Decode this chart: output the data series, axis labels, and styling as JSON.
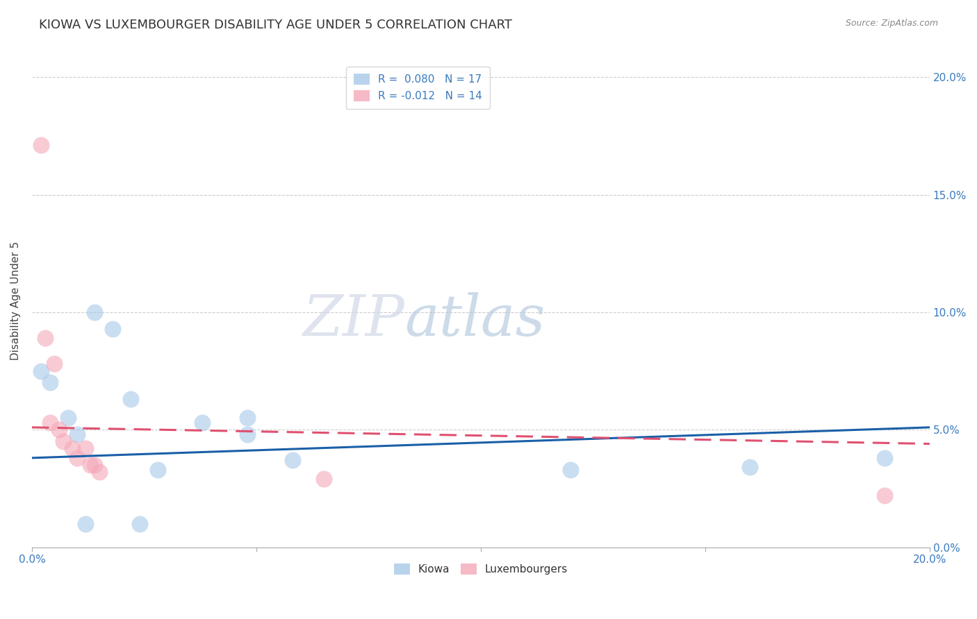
{
  "title": "KIOWA VS LUXEMBOURGER DISABILITY AGE UNDER 5 CORRELATION CHART",
  "source": "Source: ZipAtlas.com",
  "ylabel": "Disability Age Under 5",
  "legend_kiowa": {
    "R": "0.080",
    "N": 17
  },
  "legend_luxembourger": {
    "R": "-0.012",
    "N": 14
  },
  "kiowa_color": "#a8c8e8",
  "luxembourger_color": "#f4a8b8",
  "kiowa_line_color": "#1a5fa8",
  "luxembourger_line_color": "#e05070",
  "background_color": "#ffffff",
  "grid_color": "#cccccc",
  "kiowa_points": [
    [
      0.002,
      0.075
    ],
    [
      0.004,
      0.07
    ],
    [
      0.008,
      0.055
    ],
    [
      0.01,
      0.048
    ],
    [
      0.012,
      0.01
    ],
    [
      0.014,
      0.1
    ],
    [
      0.018,
      0.093
    ],
    [
      0.022,
      0.063
    ],
    [
      0.024,
      0.01
    ],
    [
      0.028,
      0.033
    ],
    [
      0.038,
      0.053
    ],
    [
      0.048,
      0.048
    ],
    [
      0.048,
      0.055
    ],
    [
      0.058,
      0.037
    ],
    [
      0.12,
      0.033
    ],
    [
      0.16,
      0.034
    ],
    [
      0.19,
      0.038
    ]
  ],
  "luxembourger_points": [
    [
      0.002,
      0.171
    ],
    [
      0.003,
      0.089
    ],
    [
      0.004,
      0.053
    ],
    [
      0.005,
      0.078
    ],
    [
      0.006,
      0.05
    ],
    [
      0.007,
      0.045
    ],
    [
      0.009,
      0.042
    ],
    [
      0.01,
      0.038
    ],
    [
      0.012,
      0.042
    ],
    [
      0.013,
      0.035
    ],
    [
      0.014,
      0.035
    ],
    [
      0.015,
      0.032
    ],
    [
      0.065,
      0.029
    ],
    [
      0.19,
      0.022
    ]
  ],
  "kiowa_trend": [
    0.038,
    0.051
  ],
  "luxembourger_trend": [
    0.051,
    0.044
  ],
  "xlim": [
    0.0,
    0.2
  ],
  "ylim": [
    0.0,
    0.21
  ],
  "yticks": [
    0.0,
    0.05,
    0.1,
    0.15,
    0.2
  ],
  "ytick_labels": [
    "0.0%",
    "5.0%",
    "10.0%",
    "15.0%",
    "20.0%"
  ],
  "xticks": [
    0.0,
    0.05,
    0.1,
    0.15,
    0.2
  ],
  "xtick_labels": [
    "0.0%",
    "",
    "",
    "",
    "20.0%"
  ],
  "watermark_zip": "ZIP",
  "watermark_atlas": "atlas",
  "title_fontsize": 13,
  "axis_fontsize": 11,
  "tick_fontsize": 11,
  "source_fontsize": 9
}
